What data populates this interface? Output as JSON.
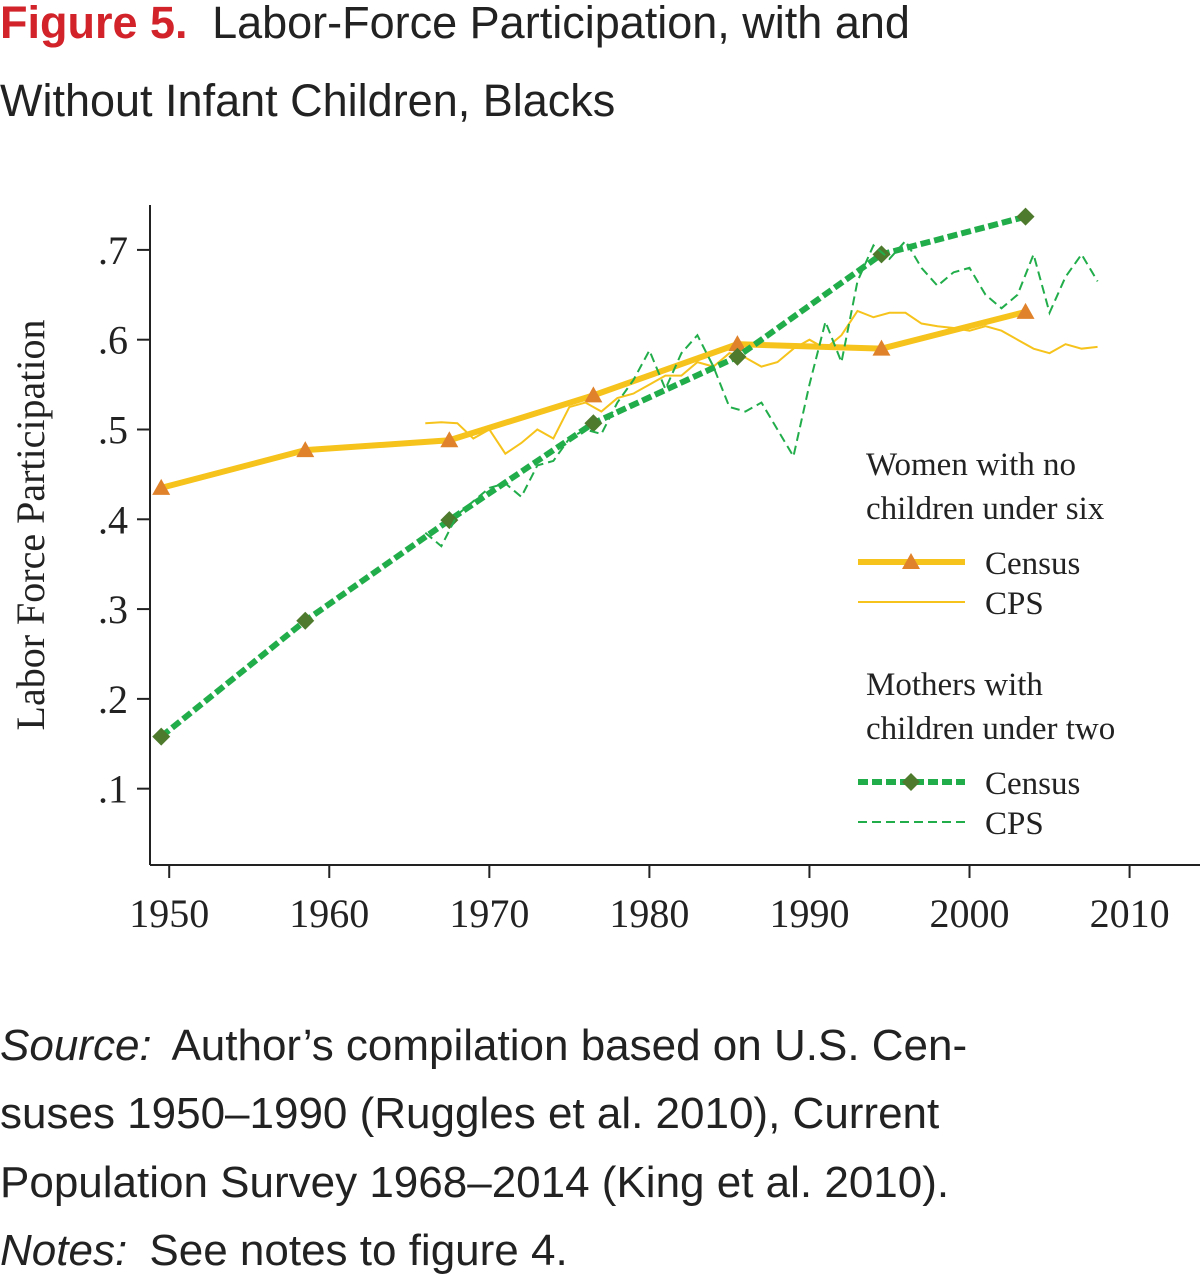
{
  "chart_data": {
    "type": "line",
    "figure_label": "Figure 5.",
    "title_lines": [
      "Labor-Force Participation, with and",
      "Without Infant Children, Blacks"
    ],
    "ylabel": "Labor Force Participation",
    "xlim": [
      1948.8,
      2014.4
    ],
    "ylim": [
      0.015,
      0.75
    ],
    "xticks": [
      1950,
      1960,
      1970,
      1980,
      1990,
      2000,
      2010
    ],
    "yticks": [
      {
        "value": 0.1,
        "label": ".1"
      },
      {
        "value": 0.2,
        "label": ".2"
      },
      {
        "value": 0.3,
        "label": ".3"
      },
      {
        "value": 0.4,
        "label": ".4"
      },
      {
        "value": 0.5,
        "label": ".5"
      },
      {
        "value": 0.6,
        "label": ".6"
      },
      {
        "value": 0.7,
        "label": ".7"
      }
    ],
    "legend_groups": [
      {
        "title": [
          "Women with no",
          "children under six"
        ]
      },
      {
        "title": [
          "Mothers with",
          "children under two"
        ]
      }
    ],
    "series": [
      {
        "name": "Census",
        "color": "#f6c31c",
        "marker": "triangle",
        "marker_color": "#e0822c",
        "x": [
          1949.5,
          1958.5,
          1967.5,
          1976.5,
          1985.5,
          1994.5,
          2003.5
        ],
        "values": [
          0.435,
          0.477,
          0.488,
          0.538,
          0.595,
          0.59,
          0.631
        ]
      },
      {
        "name": "CPS",
        "color": "#f6c31c",
        "x": [
          1966,
          1967,
          1968,
          1969,
          1970,
          1971,
          1972,
          1973,
          1974,
          1975,
          1976,
          1977,
          1978,
          1979,
          1980,
          1981,
          1982,
          1983,
          1984,
          1985,
          1986,
          1987,
          1988,
          1989,
          1990,
          1991,
          1992,
          1993,
          1994,
          1995,
          1996,
          1997,
          1998,
          1999,
          2000,
          2001,
          2002,
          2003,
          2004,
          2005,
          2006,
          2007,
          2008
        ],
        "values": [
          0.507,
          0.508,
          0.507,
          0.49,
          0.5,
          0.473,
          0.485,
          0.5,
          0.49,
          0.525,
          0.53,
          0.52,
          0.535,
          0.54,
          0.55,
          0.56,
          0.56,
          0.575,
          0.57,
          0.585,
          0.58,
          0.57,
          0.575,
          0.59,
          0.6,
          0.59,
          0.605,
          0.632,
          0.625,
          0.63,
          0.63,
          0.618,
          0.615,
          0.613,
          0.61,
          0.615,
          0.61,
          0.6,
          0.59,
          0.585,
          0.595,
          0.59,
          0.592
        ]
      },
      {
        "name": "Census",
        "color": "#22ad4b",
        "marker": "diamond",
        "marker_color": "#4d7a2c",
        "dashed": true,
        "x": [
          1949.5,
          1958.5,
          1967.5,
          1976.5,
          1985.5,
          1994.5,
          2003.5
        ],
        "values": [
          0.158,
          0.287,
          0.399,
          0.507,
          0.581,
          0.695,
          0.737
        ]
      },
      {
        "name": "CPS",
        "color": "#22ad4b",
        "dashed": true,
        "x": [
          1966,
          1967,
          1968,
          1969,
          1970,
          1971,
          1972,
          1973,
          1974,
          1975,
          1976,
          1977,
          1978,
          1979,
          1980,
          1981,
          1982,
          1983,
          1984,
          1985,
          1986,
          1987,
          1988,
          1989,
          1990,
          1991,
          1992,
          1993,
          1994,
          1995,
          1996,
          1997,
          1998,
          1999,
          2000,
          2001,
          2002,
          2003,
          2004,
          2005,
          2006,
          2007,
          2008
        ],
        "values": [
          0.385,
          0.37,
          0.405,
          0.42,
          0.435,
          0.44,
          0.425,
          0.46,
          0.465,
          0.49,
          0.5,
          0.495,
          0.53,
          0.555,
          0.588,
          0.545,
          0.585,
          0.605,
          0.57,
          0.525,
          0.52,
          0.53,
          0.5,
          0.47,
          0.55,
          0.62,
          0.575,
          0.665,
          0.705,
          0.69,
          0.71,
          0.68,
          0.66,
          0.675,
          0.68,
          0.65,
          0.635,
          0.65,
          0.695,
          0.63,
          0.67,
          0.695,
          0.665
        ]
      }
    ],
    "source": {
      "label": "Source:",
      "lines": [
        "Author’s compilation based on U.S. Cen-",
        "suses 1950–1990 (Ruggles et al. 2010), Current",
        "Population Survey 1968–2014 (King et al. 2010)."
      ]
    },
    "notes": {
      "label": "Notes:",
      "text": "See notes to figure 4."
    }
  }
}
